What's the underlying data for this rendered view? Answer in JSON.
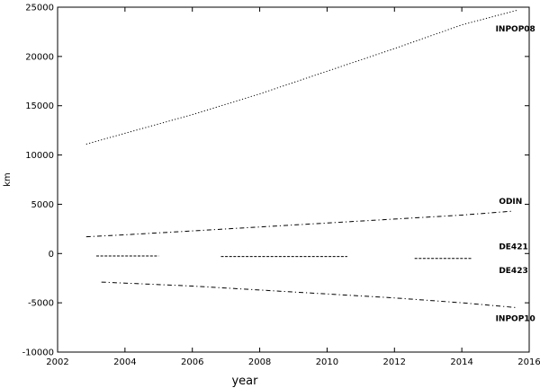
{
  "chart_data": {
    "type": "line",
    "xlabel": "year",
    "ylabel": "km",
    "xlim": [
      2002,
      2016
    ],
    "ylim": [
      -10000,
      25000
    ],
    "xticks": [
      2002,
      2004,
      2006,
      2008,
      2010,
      2012,
      2014,
      2016
    ],
    "yticks": [
      -10000,
      -5000,
      0,
      5000,
      10000,
      15000,
      20000,
      25000
    ],
    "grid": false,
    "legend": "inline labels at line ends (right side)",
    "series": [
      {
        "name": "INPOP08",
        "style": "dotted",
        "segments": [
          {
            "x": [
              2002.85,
              2004,
              2006,
              2008,
              2010,
              2012,
              2014,
              2015.65
            ],
            "y": [
              11100,
              12200,
              14100,
              16200,
              18500,
              20800,
              23200,
              24700
            ]
          }
        ]
      },
      {
        "name": "ODIN",
        "style": "dash-dot",
        "segments": [
          {
            "x": [
              2002.85,
              2004,
              2006,
              2008,
              2010,
              2012,
              2014,
              2015.5
            ],
            "y": [
              1700,
              1900,
              2300,
              2700,
              3100,
              3500,
              3900,
              4300
            ]
          }
        ]
      },
      {
        "name": "DE421",
        "style": "dashed",
        "segments": [
          {
            "x": [
              2003.15,
              2005.0
            ],
            "y": [
              -250,
              -250
            ]
          },
          {
            "x": [
              2006.85,
              2010.6
            ],
            "y": [
              -300,
              -300
            ]
          },
          {
            "x": [
              2012.6,
              2014.3
            ],
            "y": [
              -500,
              -500
            ]
          }
        ]
      },
      {
        "name": "DE423",
        "style": "dashed",
        "segments": []
      },
      {
        "name": "INPOP10",
        "style": "dash-dot",
        "segments": [
          {
            "x": [
              2003.3,
              2004,
              2006,
              2008,
              2010,
              2012,
              2014,
              2015.65
            ],
            "y": [
              -2900,
              -3000,
              -3300,
              -3700,
              -4100,
              -4500,
              -5000,
              -5500
            ]
          }
        ]
      }
    ],
    "series_labels": [
      {
        "text": "INPOP08",
        "x": 2015.0,
        "y": 22800
      },
      {
        "text": "ODIN",
        "x": 2015.1,
        "y": 5300
      },
      {
        "text": "DE421",
        "x": 2015.1,
        "y": 700
      },
      {
        "text": "DE423",
        "x": 2015.1,
        "y": -1700
      },
      {
        "text": "INPOP10",
        "x": 2015.0,
        "y": -6600
      }
    ]
  }
}
